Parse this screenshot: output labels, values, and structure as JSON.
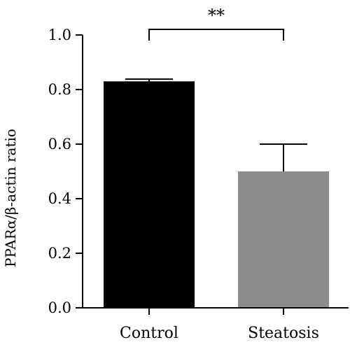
{
  "chart_data": {
    "type": "bar",
    "categories": [
      "Control",
      "Steatosis"
    ],
    "values": [
      0.83,
      0.5
    ],
    "errors": [
      0.008,
      0.1
    ],
    "colors": [
      "#000000",
      "#8c8c8e"
    ],
    "ylabel": "PPARα/β-actin ratio",
    "ylim": [
      0.0,
      1.0
    ],
    "yticks": [
      "0.0",
      "0.2",
      "0.4",
      "0.6",
      "0.8",
      "1.0"
    ],
    "significance": {
      "between": [
        0,
        1
      ],
      "label": "**",
      "level": 1.02
    },
    "grid": false
  }
}
